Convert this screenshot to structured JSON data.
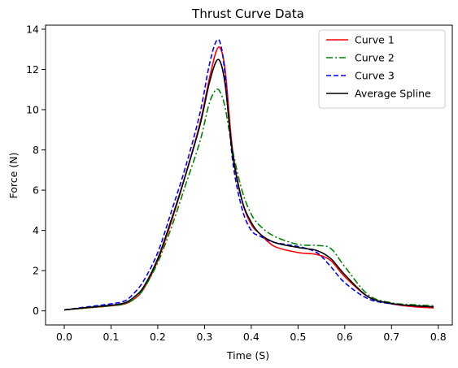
{
  "chart_data": {
    "type": "line",
    "title": "Thrust Curve Data",
    "xlabel": "Time (S)",
    "ylabel": "Force (N)",
    "xlim": [
      -0.04,
      0.83
    ],
    "ylim": [
      -0.7,
      14.2
    ],
    "xticks": [
      0.0,
      0.1,
      0.2,
      0.3,
      0.4,
      0.5,
      0.6,
      0.7,
      0.8
    ],
    "xtick_labels": [
      "0.0",
      "0.1",
      "0.2",
      "0.3",
      "0.4",
      "0.5",
      "0.6",
      "0.7",
      "0.8"
    ],
    "yticks": [
      0,
      2,
      4,
      6,
      8,
      10,
      12,
      14
    ],
    "ytick_labels": [
      "0",
      "2",
      "4",
      "6",
      "8",
      "10",
      "12",
      "14"
    ],
    "grid": false,
    "legend_position": "top-right",
    "series": [
      {
        "name": "Curve 1",
        "color": "#ff0000",
        "dash": "solid",
        "x": [
          0.0,
          0.05,
          0.1,
          0.13,
          0.15,
          0.17,
          0.2,
          0.23,
          0.26,
          0.29,
          0.31,
          0.325,
          0.335,
          0.345,
          0.36,
          0.38,
          0.4,
          0.42,
          0.45,
          0.5,
          0.54,
          0.57,
          0.6,
          0.65,
          0.7,
          0.75,
          0.79
        ],
        "y": [
          0.05,
          0.15,
          0.25,
          0.35,
          0.6,
          1.1,
          2.5,
          4.5,
          6.8,
          9.3,
          11.5,
          12.9,
          13.0,
          11.8,
          8.0,
          5.5,
          4.3,
          3.8,
          3.2,
          2.9,
          2.8,
          2.5,
          1.7,
          0.7,
          0.35,
          0.2,
          0.15
        ]
      },
      {
        "name": "Curve 2",
        "color": "#008000",
        "dash": "dashdot",
        "x": [
          0.0,
          0.05,
          0.1,
          0.13,
          0.15,
          0.17,
          0.2,
          0.23,
          0.26,
          0.29,
          0.31,
          0.325,
          0.335,
          0.345,
          0.36,
          0.38,
          0.4,
          0.42,
          0.45,
          0.5,
          0.54,
          0.57,
          0.6,
          0.65,
          0.7,
          0.75,
          0.79
        ],
        "y": [
          0.05,
          0.15,
          0.25,
          0.35,
          0.6,
          1.1,
          2.4,
          4.2,
          6.3,
          8.4,
          10.3,
          11.0,
          10.8,
          10.0,
          8.0,
          6.0,
          4.8,
          4.2,
          3.7,
          3.3,
          3.25,
          3.1,
          2.2,
          0.8,
          0.4,
          0.3,
          0.25
        ]
      },
      {
        "name": "Curve 3",
        "color": "#0000ff",
        "dash": "dashed",
        "x": [
          0.0,
          0.05,
          0.1,
          0.13,
          0.15,
          0.17,
          0.2,
          0.23,
          0.26,
          0.29,
          0.31,
          0.325,
          0.335,
          0.345,
          0.36,
          0.38,
          0.4,
          0.42,
          0.45,
          0.5,
          0.54,
          0.57,
          0.6,
          0.65,
          0.7,
          0.75,
          0.79
        ],
        "y": [
          0.05,
          0.2,
          0.35,
          0.5,
          0.9,
          1.5,
          2.9,
          5.0,
          7.2,
          9.8,
          12.2,
          13.4,
          13.2,
          11.5,
          7.5,
          5.1,
          4.0,
          3.7,
          3.4,
          3.2,
          2.9,
          2.2,
          1.4,
          0.6,
          0.35,
          0.25,
          0.2
        ]
      },
      {
        "name": "Average Spline",
        "color": "#000000",
        "dash": "solid",
        "x": [
          0.0,
          0.05,
          0.1,
          0.13,
          0.15,
          0.17,
          0.2,
          0.23,
          0.26,
          0.29,
          0.31,
          0.325,
          0.335,
          0.345,
          0.36,
          0.38,
          0.4,
          0.42,
          0.45,
          0.5,
          0.54,
          0.57,
          0.6,
          0.65,
          0.7,
          0.75,
          0.79
        ],
        "y": [
          0.05,
          0.17,
          0.28,
          0.4,
          0.7,
          1.2,
          2.6,
          4.6,
          6.8,
          9.2,
          11.3,
          12.4,
          12.3,
          11.1,
          7.8,
          5.5,
          4.4,
          3.8,
          3.4,
          3.15,
          3.0,
          2.6,
          1.8,
          0.7,
          0.37,
          0.25,
          0.2
        ]
      }
    ]
  }
}
